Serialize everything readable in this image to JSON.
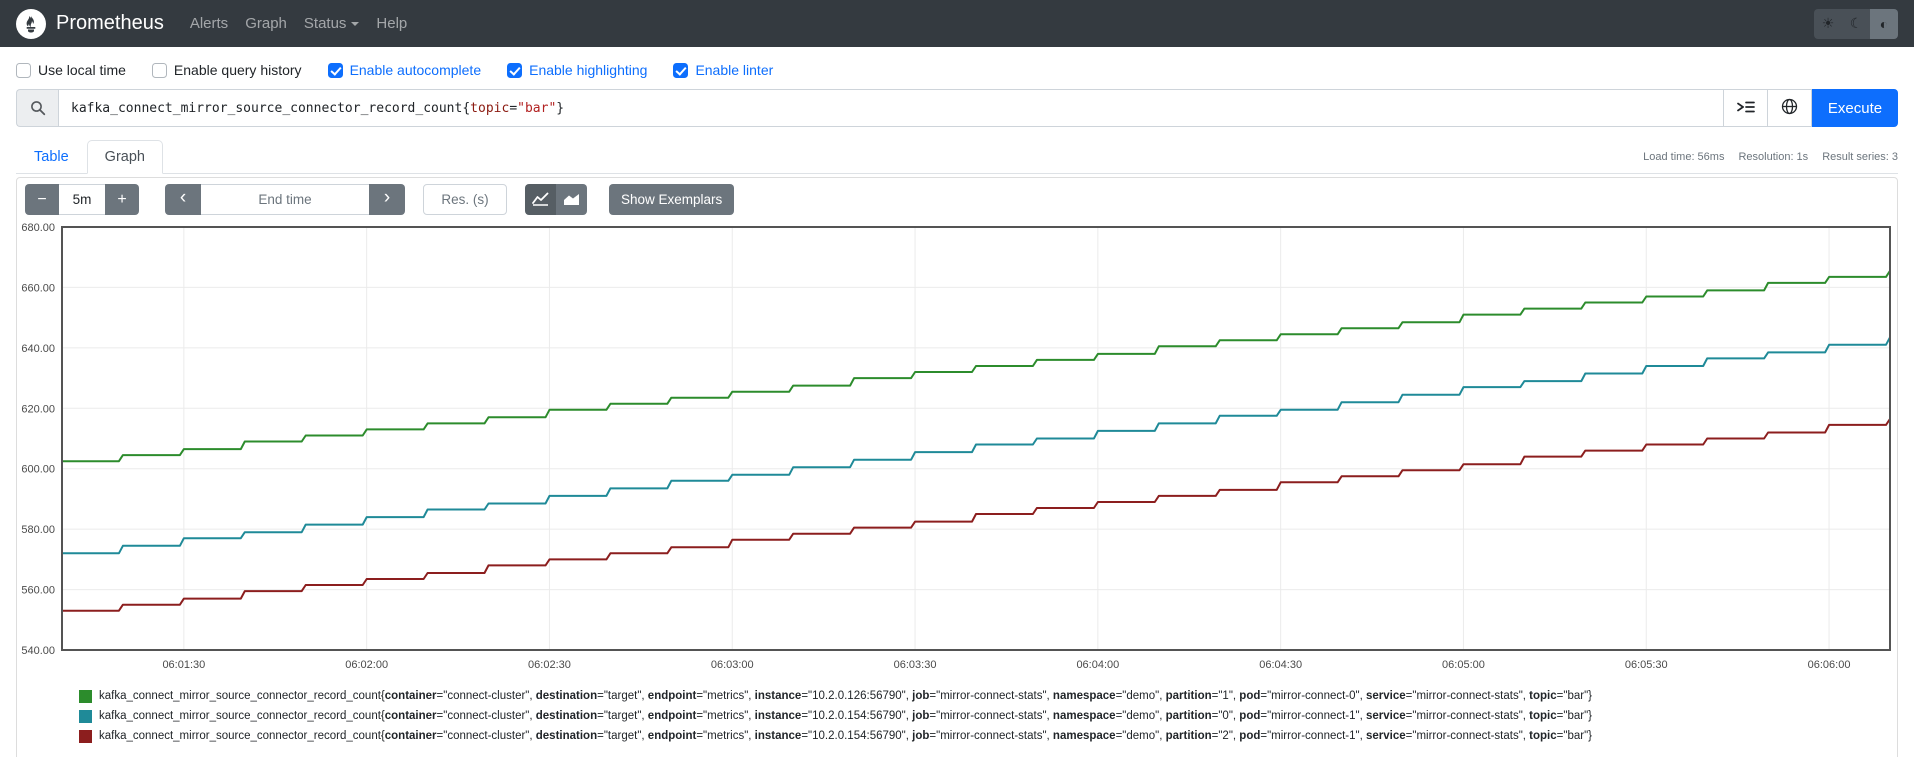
{
  "navbar": {
    "brand": "Prometheus",
    "items": [
      {
        "label": "Alerts",
        "caret": false
      },
      {
        "label": "Graph",
        "caret": false
      },
      {
        "label": "Status",
        "caret": true
      },
      {
        "label": "Help",
        "caret": false
      }
    ],
    "theme_buttons": [
      {
        "name": "light-theme",
        "glyph": "☀",
        "active": false
      },
      {
        "name": "dark-theme",
        "glyph": "☾",
        "active": false
      },
      {
        "name": "auto-theme",
        "glyph": "◐",
        "active": true
      }
    ]
  },
  "options": {
    "checkboxes": [
      {
        "label": "Use local time",
        "checked": false
      },
      {
        "label": "Enable query history",
        "checked": false
      },
      {
        "label": "Enable autocomplete",
        "checked": true
      },
      {
        "label": "Enable highlighting",
        "checked": true
      },
      {
        "label": "Enable linter",
        "checked": true
      }
    ]
  },
  "query": {
    "parts": [
      {
        "t": "kafka_connect_mirror_source_connector_record_count",
        "c": "metric"
      },
      {
        "t": "{",
        "c": "brace"
      },
      {
        "t": "topic",
        "c": "label"
      },
      {
        "t": "=",
        "c": "op"
      },
      {
        "t": "\"bar\"",
        "c": "string"
      },
      {
        "t": "}",
        "c": "brace"
      }
    ],
    "execute_label": "Execute"
  },
  "tabs": [
    {
      "label": "Table",
      "active": false
    },
    {
      "label": "Graph",
      "active": true
    }
  ],
  "stats": {
    "load_time": "Load time: 56ms",
    "resolution": "Resolution: 1s",
    "result_series": "Result series: 3"
  },
  "controls": {
    "minus_label": "−",
    "range_value": "5m",
    "plus_label": "+",
    "prev_label": "‹",
    "end_time_placeholder": "End time",
    "next_label": "›",
    "res_placeholder": "Res. (s)",
    "show_exemplars_label": "Show Exemplars"
  },
  "chart_data": {
    "type": "line",
    "line_style": "stepped",
    "grid": true,
    "ylim": [
      540,
      680
    ],
    "x_domain_s": [
      0,
      300
    ],
    "y_ticks": [
      {
        "v": 540,
        "label": "540.00"
      },
      {
        "v": 560,
        "label": "560.00"
      },
      {
        "v": 580,
        "label": "580.00"
      },
      {
        "v": 600,
        "label": "600.00"
      },
      {
        "v": 620,
        "label": "620.00"
      },
      {
        "v": 640,
        "label": "640.00"
      },
      {
        "v": 660,
        "label": "660.00"
      },
      {
        "v": 680,
        "label": "680.00"
      }
    ],
    "x_ticks": [
      {
        "s": 20,
        "label": "06:01:30"
      },
      {
        "s": 50,
        "label": "06:02:00"
      },
      {
        "s": 80,
        "label": "06:02:30"
      },
      {
        "s": 110,
        "label": "06:03:00"
      },
      {
        "s": 140,
        "label": "06:03:30"
      },
      {
        "s": 170,
        "label": "06:04:00"
      },
      {
        "s": 200,
        "label": "06:04:30"
      },
      {
        "s": 230,
        "label": "06:05:00"
      },
      {
        "s": 260,
        "label": "06:05:30"
      },
      {
        "s": 290,
        "label": "06:06:00"
      }
    ],
    "x_offsets_s": [
      0,
      10,
      20,
      30,
      40,
      50,
      60,
      70,
      80,
      90,
      100,
      110,
      120,
      130,
      140,
      150,
      160,
      170,
      180,
      190,
      200,
      210,
      220,
      230,
      240,
      250,
      260,
      270,
      280,
      290,
      300
    ],
    "series": [
      {
        "name": "mirror-connect-0 / partition 1",
        "color": "#2c8c2c",
        "values": [
          602.5,
          604.5,
          606.5,
          609,
          611,
          613,
          615,
          617,
          619.5,
          621.5,
          623.5,
          625.5,
          627.5,
          630,
          632,
          634,
          636,
          638,
          640.5,
          642.5,
          644.5,
          646.5,
          648.5,
          651,
          653,
          655,
          657,
          659,
          661.5,
          663.5,
          665.5
        ],
        "legend": {
          "metric": "kafka_connect_mirror_source_connector_record_count",
          "labels": [
            [
              "container",
              "connect-cluster"
            ],
            [
              "destination",
              "target"
            ],
            [
              "endpoint",
              "metrics"
            ],
            [
              "instance",
              "10.2.0.126:56790"
            ],
            [
              "job",
              "mirror-connect-stats"
            ],
            [
              "namespace",
              "demo"
            ],
            [
              "partition",
              "1"
            ],
            [
              "pod",
              "mirror-connect-0"
            ],
            [
              "service",
              "mirror-connect-stats"
            ],
            [
              "topic",
              "bar"
            ]
          ]
        }
      },
      {
        "name": "mirror-connect-1 / partition 0",
        "color": "#1f8a98",
        "values": [
          572,
          574.5,
          577,
          579,
          581.5,
          584,
          586.5,
          588.5,
          591,
          593.5,
          596,
          598,
          600.5,
          603,
          605.5,
          608,
          610,
          612.5,
          615,
          617.5,
          619.5,
          622,
          624.5,
          627,
          629,
          631.5,
          634,
          636.5,
          638.5,
          641,
          643.5
        ],
        "legend": {
          "metric": "kafka_connect_mirror_source_connector_record_count",
          "labels": [
            [
              "container",
              "connect-cluster"
            ],
            [
              "destination",
              "target"
            ],
            [
              "endpoint",
              "metrics"
            ],
            [
              "instance",
              "10.2.0.154:56790"
            ],
            [
              "job",
              "mirror-connect-stats"
            ],
            [
              "namespace",
              "demo"
            ],
            [
              "partition",
              "0"
            ],
            [
              "pod",
              "mirror-connect-1"
            ],
            [
              "service",
              "mirror-connect-stats"
            ],
            [
              "topic",
              "bar"
            ]
          ]
        }
      },
      {
        "name": "mirror-connect-1 / partition 2",
        "color": "#8c1e1e",
        "values": [
          553,
          555,
          557,
          559.5,
          561.5,
          563.5,
          565.5,
          568,
          570,
          572,
          574,
          576.5,
          578.5,
          580.5,
          582.5,
          585,
          587,
          589,
          591,
          593,
          595.5,
          597.5,
          599.5,
          601.5,
          604,
          606,
          608,
          610,
          612,
          614.5,
          616.5
        ],
        "legend": {
          "metric": "kafka_connect_mirror_source_connector_record_count",
          "labels": [
            [
              "container",
              "connect-cluster"
            ],
            [
              "destination",
              "target"
            ],
            [
              "endpoint",
              "metrics"
            ],
            [
              "instance",
              "10.2.0.154:56790"
            ],
            [
              "job",
              "mirror-connect-stats"
            ],
            [
              "namespace",
              "demo"
            ],
            [
              "partition",
              "2"
            ],
            [
              "pod",
              "mirror-connect-1"
            ],
            [
              "service",
              "mirror-connect-stats"
            ],
            [
              "topic",
              "bar"
            ]
          ]
        }
      }
    ]
  }
}
